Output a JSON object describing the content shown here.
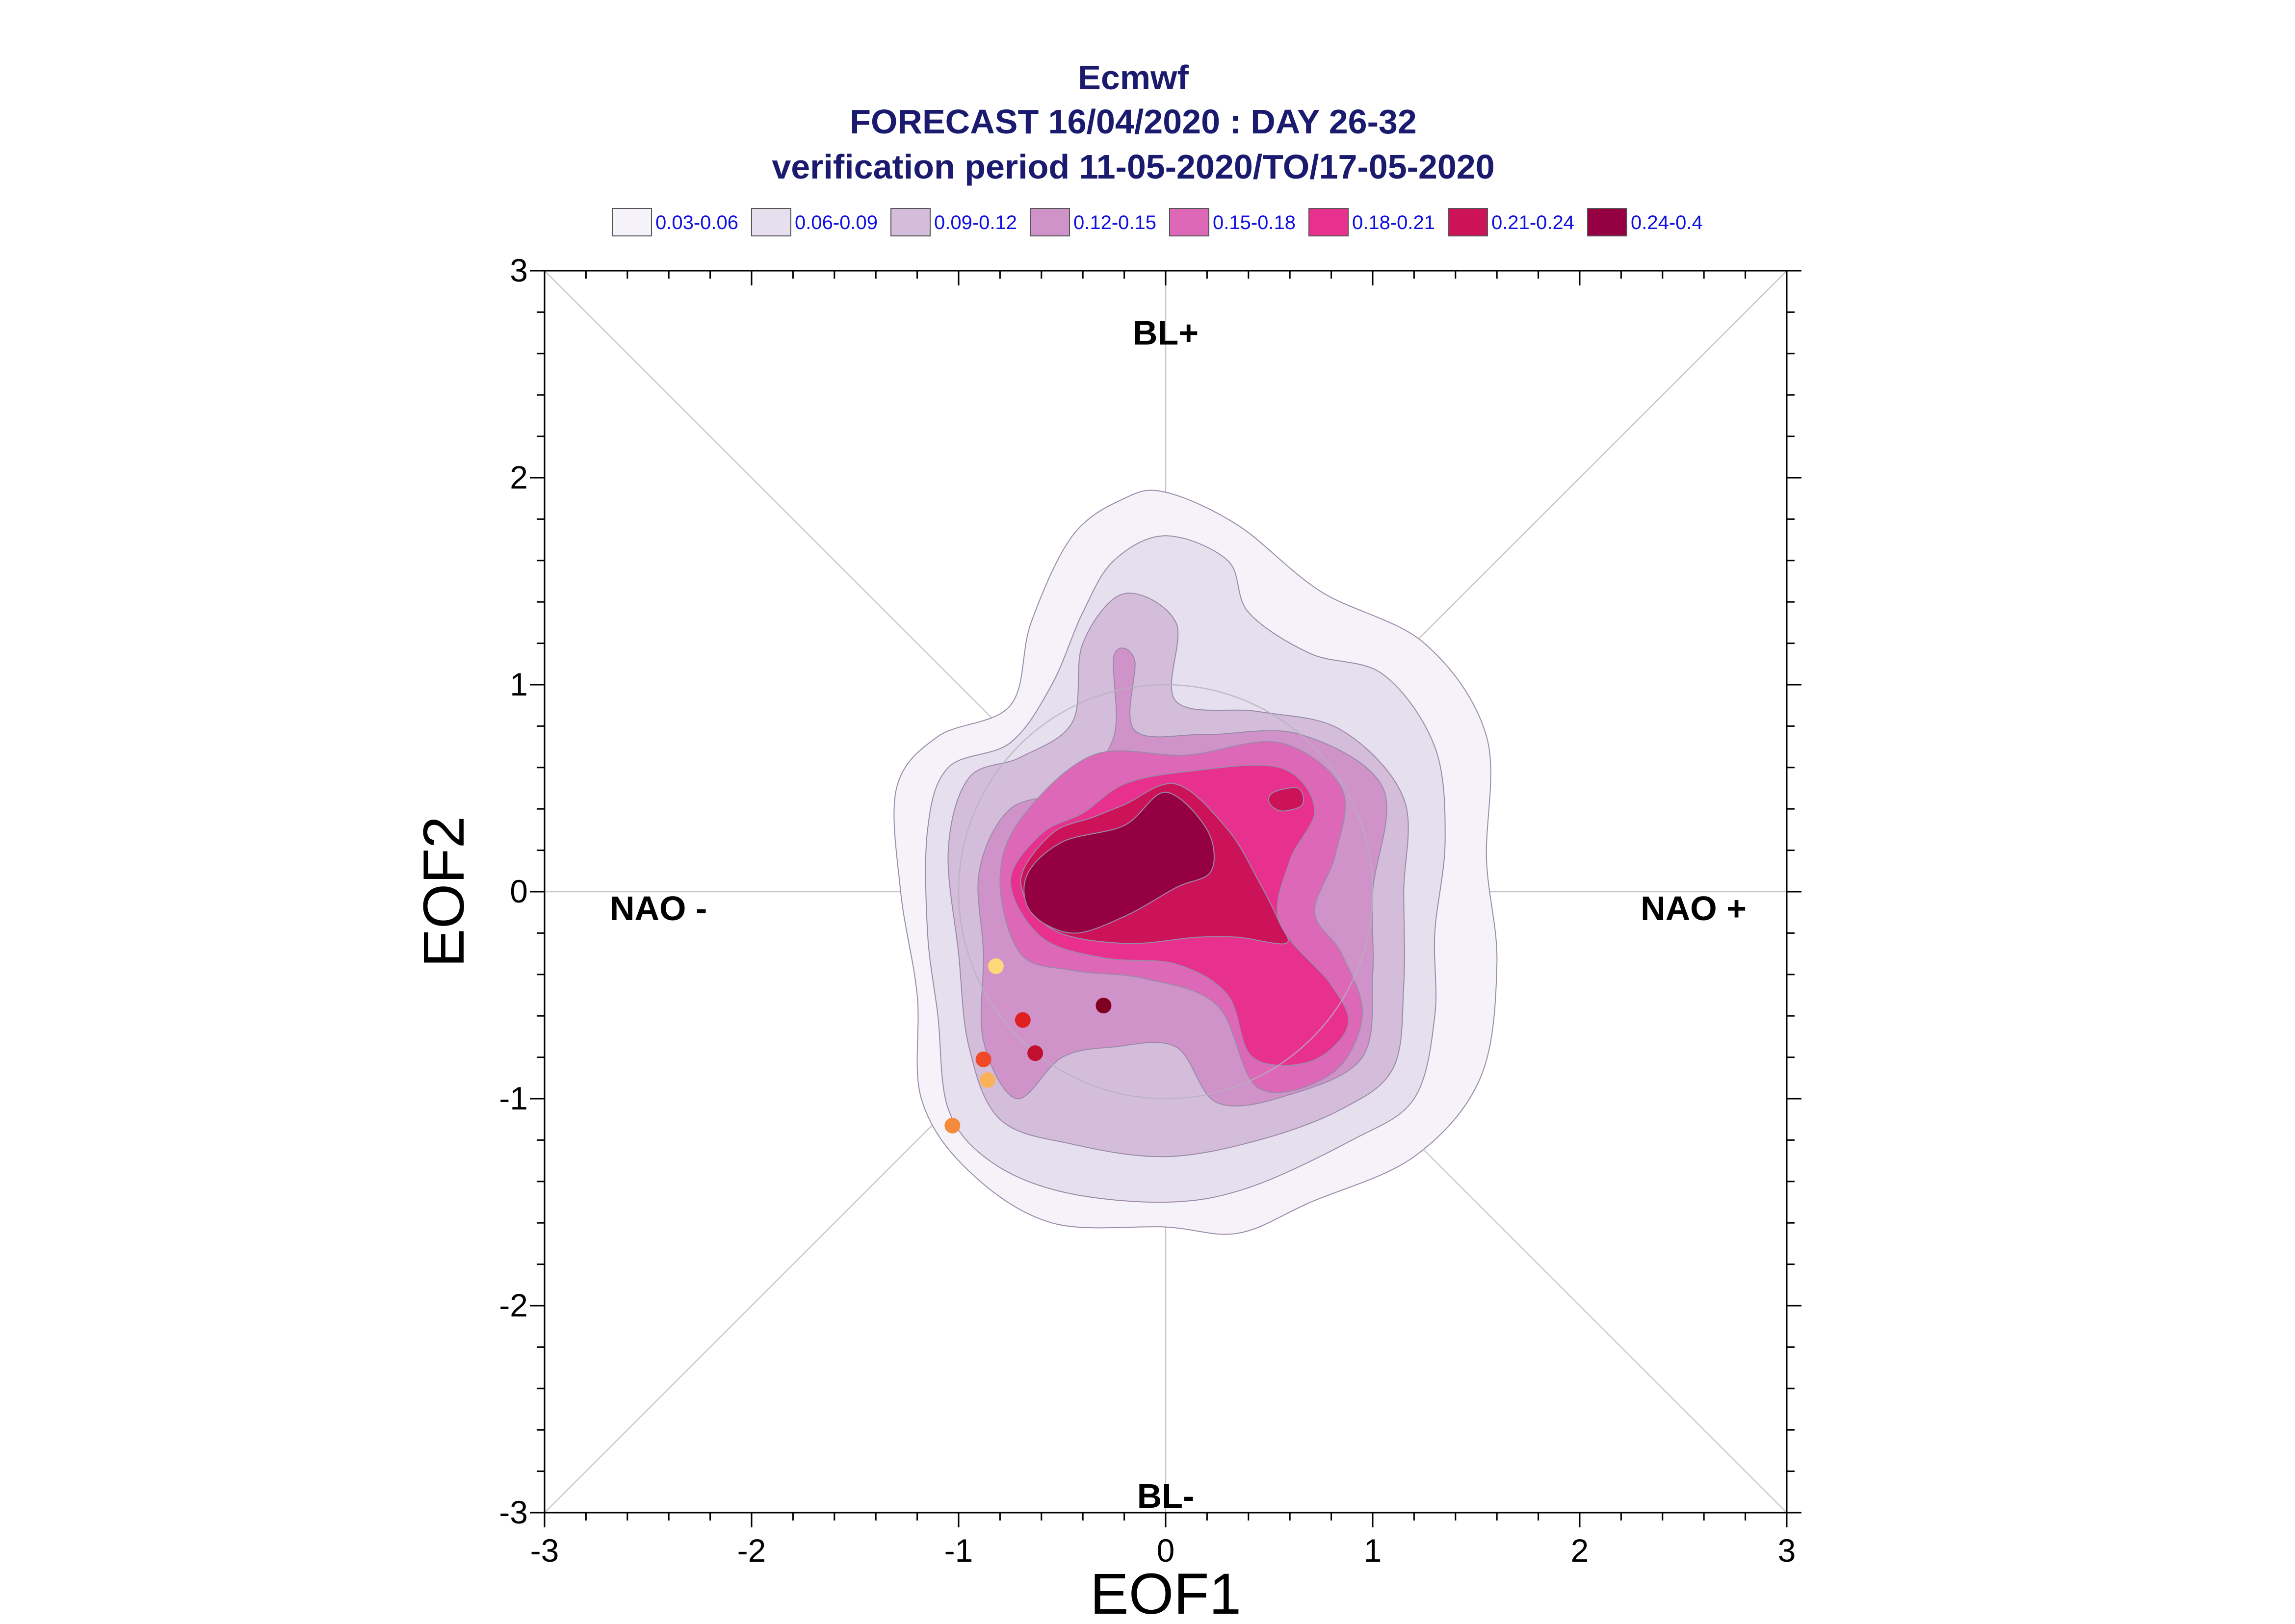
{
  "chart_data": {
    "type": "contour",
    "title_lines": [
      "Ecmwf",
      "FORECAST 16/04/2020 : DAY 26-32",
      "verification period 11-05-2020/TO/17-05-2020"
    ],
    "xlabel": "EOF1",
    "ylabel": "EOF2",
    "xlim": [
      -3,
      3
    ],
    "ylim": [
      -3,
      3
    ],
    "xticks": [
      -3,
      -2,
      -1,
      0,
      1,
      2,
      3
    ],
    "yticks": [
      -3,
      -2,
      -1,
      0,
      1,
      2,
      3
    ],
    "tick_labels_x": [
      "-3",
      "-2",
      "-1",
      "0",
      "1",
      "2",
      "3"
    ],
    "tick_labels_y": [
      "-3",
      "-2",
      "-1",
      "0",
      "1",
      "2",
      "3"
    ],
    "regions": [
      {
        "label": "BL+",
        "x": 0,
        "y": 2.7
      },
      {
        "label": "NAO -",
        "x": -2.45,
        "y": -0.08
      },
      {
        "label": "NAO +",
        "x": 2.55,
        "y": -0.08
      },
      {
        "label": "BL-",
        "x": 0,
        "y": -2.92
      }
    ],
    "reference_circle_radius": 1,
    "legend": {
      "placement": "top",
      "entries": [
        {
          "label": "0.03-0.06",
          "color": "#f5f3f9"
        },
        {
          "label": "0.06-0.09",
          "color": "#e6dfee"
        },
        {
          "label": "0.09-0.12",
          "color": "#d4bcdb"
        },
        {
          "label": "0.12-0.15",
          "color": "#cf93c9"
        },
        {
          "label": "0.15-0.18",
          "color": "#dc68b7"
        },
        {
          "label": "0.18-0.21",
          "color": "#e8308e"
        },
        {
          "label": "0.21-0.24",
          "color": "#cc1258"
        },
        {
          "label": "0.24-0.4",
          "color": "#950043"
        }
      ]
    },
    "contours": [
      {
        "level": "0.03-0.06",
        "points": [
          [
            0,
            1.93
          ],
          [
            0.35,
            1.77
          ],
          [
            0.75,
            1.45
          ],
          [
            1.25,
            1.2
          ],
          [
            1.55,
            0.75
          ],
          [
            1.55,
            0.15
          ],
          [
            1.6,
            -0.35
          ],
          [
            1.52,
            -0.9
          ],
          [
            1.2,
            -1.28
          ],
          [
            0.7,
            -1.5
          ],
          [
            0.35,
            -1.65
          ],
          [
            0,
            -1.62
          ],
          [
            -0.55,
            -1.6
          ],
          [
            -0.95,
            -1.35
          ],
          [
            -1.18,
            -1
          ],
          [
            -1.2,
            -0.5
          ],
          [
            -1.28,
            0
          ],
          [
            -1.3,
            0.5
          ],
          [
            -1.1,
            0.75
          ],
          [
            -0.75,
            0.9
          ],
          [
            -0.65,
            1.3
          ],
          [
            -0.45,
            1.72
          ],
          [
            -0.2,
            1.9
          ]
        ]
      },
      {
        "level": "0.06-0.09",
        "points": [
          [
            0,
            1.72
          ],
          [
            0.3,
            1.6
          ],
          [
            0.4,
            1.35
          ],
          [
            0.7,
            1.15
          ],
          [
            1.05,
            1.05
          ],
          [
            1.3,
            0.7
          ],
          [
            1.35,
            0.25
          ],
          [
            1.3,
            -0.2
          ],
          [
            1.3,
            -0.6
          ],
          [
            1.2,
            -1
          ],
          [
            0.9,
            -1.2
          ],
          [
            0.4,
            -1.43
          ],
          [
            0,
            -1.5
          ],
          [
            -0.5,
            -1.45
          ],
          [
            -0.85,
            -1.3
          ],
          [
            -1.05,
            -1.05
          ],
          [
            -1.1,
            -0.6
          ],
          [
            -1.15,
            -0.2
          ],
          [
            -1.15,
            0.3
          ],
          [
            -1.05,
            0.6
          ],
          [
            -0.75,
            0.72
          ],
          [
            -0.55,
            1
          ],
          [
            -0.4,
            1.35
          ],
          [
            -0.25,
            1.6
          ]
        ]
      },
      {
        "level": "0.09-0.12",
        "points": [
          [
            -0.2,
            1.44
          ],
          [
            0.05,
            1.3
          ],
          [
            0.05,
            0.92
          ],
          [
            0.45,
            0.87
          ],
          [
            0.85,
            0.78
          ],
          [
            1.15,
            0.45
          ],
          [
            1.15,
            0
          ],
          [
            1.15,
            -0.45
          ],
          [
            1.1,
            -0.85
          ],
          [
            0.85,
            -1.05
          ],
          [
            0.45,
            -1.2
          ],
          [
            0,
            -1.28
          ],
          [
            -0.45,
            -1.22
          ],
          [
            -0.8,
            -1.1
          ],
          [
            -0.95,
            -0.75
          ],
          [
            -1,
            -0.3
          ],
          [
            -1.05,
            0.2
          ],
          [
            -0.95,
            0.55
          ],
          [
            -0.7,
            0.65
          ],
          [
            -0.45,
            0.82
          ],
          [
            -0.4,
            1.2
          ]
        ]
      },
      {
        "level": "0.12-0.15",
        "points": [
          [
            -0.25,
            1.14
          ],
          [
            -0.15,
            1.12
          ],
          [
            -0.15,
            0.78
          ],
          [
            0.2,
            0.76
          ],
          [
            0.65,
            0.76
          ],
          [
            1.05,
            0.5
          ],
          [
            1,
            0
          ],
          [
            1,
            -0.4
          ],
          [
            0.95,
            -0.8
          ],
          [
            0.6,
            -0.98
          ],
          [
            0.25,
            -1.02
          ],
          [
            0.05,
            -0.75
          ],
          [
            -0.25,
            -0.75
          ],
          [
            -0.5,
            -0.8
          ],
          [
            -0.72,
            -1
          ],
          [
            -0.88,
            -0.72
          ],
          [
            -0.88,
            -0.3
          ],
          [
            -0.9,
            0.1
          ],
          [
            -0.75,
            0.4
          ],
          [
            -0.45,
            0.5
          ],
          [
            -0.25,
            0.75
          ]
        ]
      },
      {
        "level": "0.15-0.18",
        "points": [
          [
            -0.35,
            0.66
          ],
          [
            0.1,
            0.66
          ],
          [
            0.55,
            0.72
          ],
          [
            0.85,
            0.5
          ],
          [
            0.82,
            0.18
          ],
          [
            0.72,
            -0.1
          ],
          [
            0.85,
            -0.3
          ],
          [
            0.95,
            -0.6
          ],
          [
            0.8,
            -0.88
          ],
          [
            0.45,
            -0.95
          ],
          [
            0.25,
            -0.55
          ],
          [
            -0.1,
            -0.42
          ],
          [
            -0.45,
            -0.38
          ],
          [
            -0.7,
            -0.3
          ],
          [
            -0.8,
            0.05
          ],
          [
            -0.7,
            0.35
          ]
        ]
      },
      {
        "level": "0.18-0.21",
        "points": [
          [
            -0.2,
            0.52
          ],
          [
            0.1,
            0.58
          ],
          [
            0.55,
            0.6
          ],
          [
            0.72,
            0.4
          ],
          [
            0.6,
            0.15
          ],
          [
            0.55,
            -0.15
          ],
          [
            0.8,
            -0.45
          ],
          [
            0.88,
            -0.65
          ],
          [
            0.7,
            -0.82
          ],
          [
            0.42,
            -0.8
          ],
          [
            0.3,
            -0.5
          ],
          [
            0.05,
            -0.35
          ],
          [
            -0.3,
            -0.32
          ],
          [
            -0.6,
            -0.22
          ],
          [
            -0.75,
            0.05
          ],
          [
            -0.6,
            0.28
          ],
          [
            -0.4,
            0.38
          ]
        ]
      },
      {
        "level": "0.21-0.24",
        "points": [
          [
            -0.2,
            0.42
          ],
          [
            0.05,
            0.52
          ],
          [
            0.3,
            0.3
          ],
          [
            0.45,
            0.05
          ],
          [
            0.55,
            -0.15
          ],
          [
            0.58,
            -0.25
          ],
          [
            0.35,
            -0.22
          ],
          [
            0.15,
            -0.22
          ],
          [
            -0.2,
            -0.25
          ],
          [
            -0.55,
            -0.18
          ],
          [
            -0.7,
            0.05
          ],
          [
            -0.55,
            0.28
          ],
          [
            -0.35,
            0.36
          ]
        ]
      },
      {
        "level": "0.24-0.4",
        "points": [
          [
            -0.2,
            0.32
          ],
          [
            0,
            0.48
          ],
          [
            0.2,
            0.3
          ],
          [
            0.22,
            0.1
          ],
          [
            0.05,
            0.02
          ],
          [
            -0.2,
            -0.12
          ],
          [
            -0.45,
            -0.2
          ],
          [
            -0.65,
            -0.1
          ],
          [
            -0.67,
            0.08
          ],
          [
            -0.5,
            0.24
          ]
        ]
      }
    ],
    "peak_islands": [
      {
        "level": "0.21-0.24",
        "points": [
          [
            0.52,
            0.48
          ],
          [
            0.64,
            0.5
          ],
          [
            0.66,
            0.42
          ],
          [
            0.56,
            0.39
          ],
          [
            0.5,
            0.43
          ]
        ]
      }
    ],
    "points": [
      {
        "x": -0.82,
        "y": -0.36,
        "color": "#fdd87a"
      },
      {
        "x": -0.69,
        "y": -0.62,
        "color": "#e02020"
      },
      {
        "x": -0.3,
        "y": -0.55,
        "color": "#800020"
      },
      {
        "x": -0.63,
        "y": -0.78,
        "color": "#c01030"
      },
      {
        "x": -0.88,
        "y": -0.81,
        "color": "#f04828"
      },
      {
        "x": -0.86,
        "y": -0.91,
        "color": "#f9b25a"
      },
      {
        "x": -1.03,
        "y": -1.13,
        "color": "#f58a3c"
      }
    ],
    "grid": "crosshair-and-diagonals"
  }
}
